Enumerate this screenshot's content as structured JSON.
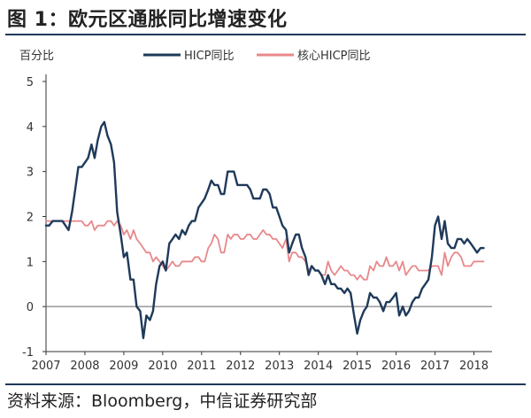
{
  "title": "图 1：欧元区通胀同比增速变化",
  "source": "资料来源：Bloomberg，中信证券研究部",
  "chart_data": {
    "type": "line",
    "ylabel": "百分比",
    "ylim": [
      -1,
      5
    ],
    "yticks": [
      "5",
      "4",
      "3",
      "2",
      "1",
      "0",
      "-1"
    ],
    "xlim": [
      2007,
      2018.33
    ],
    "xticks": [
      "2007",
      "2008",
      "2009",
      "2010",
      "2011",
      "2012",
      "2013",
      "2014",
      "2015",
      "2016",
      "2017",
      "2018"
    ],
    "grid": false,
    "legend_position": "top",
    "colors": {
      "headline": "#1f3a5a",
      "core": "#e8888a",
      "zero_line": "#666666",
      "axis": "#333333"
    },
    "series": [
      {
        "name": "HICP同比",
        "key": "headline",
        "x": [
          2007.0,
          2007.08,
          2007.17,
          2007.25,
          2007.33,
          2007.42,
          2007.5,
          2007.58,
          2007.67,
          2007.75,
          2007.83,
          2007.92,
          2008.0,
          2008.08,
          2008.17,
          2008.25,
          2008.33,
          2008.42,
          2008.5,
          2008.58,
          2008.67,
          2008.75,
          2008.83,
          2008.92,
          2009.0,
          2009.08,
          2009.17,
          2009.25,
          2009.33,
          2009.42,
          2009.5,
          2009.58,
          2009.67,
          2009.75,
          2009.83,
          2009.92,
          2010.0,
          2010.08,
          2010.17,
          2010.25,
          2010.33,
          2010.42,
          2010.5,
          2010.58,
          2010.67,
          2010.75,
          2010.83,
          2010.92,
          2011.0,
          2011.08,
          2011.17,
          2011.25,
          2011.33,
          2011.42,
          2011.5,
          2011.58,
          2011.67,
          2011.75,
          2011.83,
          2011.92,
          2012.0,
          2012.08,
          2012.17,
          2012.25,
          2012.33,
          2012.42,
          2012.5,
          2012.58,
          2012.67,
          2012.75,
          2012.83,
          2012.92,
          2013.0,
          2013.08,
          2013.17,
          2013.25,
          2013.33,
          2013.42,
          2013.5,
          2013.58,
          2013.67,
          2013.75,
          2013.83,
          2013.92,
          2014.0,
          2014.08,
          2014.17,
          2014.25,
          2014.33,
          2014.42,
          2014.5,
          2014.58,
          2014.67,
          2014.75,
          2014.83,
          2014.92,
          2015.0,
          2015.08,
          2015.17,
          2015.25,
          2015.33,
          2015.42,
          2015.5,
          2015.58,
          2015.67,
          2015.75,
          2015.83,
          2015.92,
          2016.0,
          2016.08,
          2016.17,
          2016.25,
          2016.33,
          2016.42,
          2016.5,
          2016.58,
          2016.67,
          2016.75,
          2016.83,
          2016.92,
          2017.0,
          2017.08,
          2017.17,
          2017.25,
          2017.33,
          2017.42,
          2017.5,
          2017.58,
          2017.67,
          2017.75,
          2017.83,
          2017.92,
          2018.0,
          2018.08,
          2018.17,
          2018.25
        ],
        "values": [
          1.8,
          1.8,
          1.9,
          1.9,
          1.9,
          1.9,
          1.8,
          1.7,
          2.1,
          2.6,
          3.1,
          3.1,
          3.2,
          3.3,
          3.6,
          3.3,
          3.7,
          4.0,
          4.1,
          3.8,
          3.6,
          3.2,
          2.1,
          1.6,
          1.1,
          1.2,
          0.6,
          0.6,
          0.0,
          -0.1,
          -0.7,
          -0.2,
          -0.3,
          -0.1,
          0.5,
          0.9,
          1.0,
          0.8,
          1.4,
          1.5,
          1.6,
          1.5,
          1.7,
          1.6,
          1.8,
          1.9,
          1.9,
          2.2,
          2.3,
          2.4,
          2.6,
          2.8,
          2.7,
          2.7,
          2.5,
          2.5,
          3.0,
          3.0,
          3.0,
          2.7,
          2.7,
          2.7,
          2.7,
          2.6,
          2.4,
          2.4,
          2.4,
          2.6,
          2.6,
          2.5,
          2.2,
          2.2,
          2.0,
          1.8,
          1.7,
          1.2,
          1.4,
          1.6,
          1.6,
          1.3,
          1.1,
          0.7,
          0.9,
          0.8,
          0.8,
          0.7,
          0.5,
          0.7,
          0.5,
          0.5,
          0.4,
          0.4,
          0.3,
          0.4,
          0.3,
          -0.2,
          -0.6,
          -0.3,
          -0.1,
          0.0,
          0.3,
          0.2,
          0.2,
          0.1,
          -0.1,
          0.1,
          0.1,
          0.2,
          0.3,
          -0.2,
          0.0,
          -0.2,
          -0.1,
          0.1,
          0.2,
          0.2,
          0.4,
          0.5,
          0.6,
          1.1,
          1.8,
          2.0,
          1.5,
          1.9,
          1.4,
          1.3,
          1.3,
          1.5,
          1.5,
          1.4,
          1.5,
          1.4,
          1.3,
          1.2,
          1.3,
          1.3
        ]
      },
      {
        "name": "核心HICP同比",
        "key": "core",
        "x": [
          2007.0,
          2007.08,
          2007.17,
          2007.25,
          2007.33,
          2007.42,
          2007.5,
          2007.58,
          2007.67,
          2007.75,
          2007.83,
          2007.92,
          2008.0,
          2008.08,
          2008.17,
          2008.25,
          2008.33,
          2008.42,
          2008.5,
          2008.58,
          2008.67,
          2008.75,
          2008.83,
          2008.92,
          2009.0,
          2009.08,
          2009.17,
          2009.25,
          2009.33,
          2009.42,
          2009.5,
          2009.58,
          2009.67,
          2009.75,
          2009.83,
          2009.92,
          2010.0,
          2010.08,
          2010.17,
          2010.25,
          2010.33,
          2010.42,
          2010.5,
          2010.58,
          2010.67,
          2010.75,
          2010.83,
          2010.92,
          2011.0,
          2011.08,
          2011.17,
          2011.25,
          2011.33,
          2011.42,
          2011.5,
          2011.58,
          2011.67,
          2011.75,
          2011.83,
          2011.92,
          2012.0,
          2012.08,
          2012.17,
          2012.25,
          2012.33,
          2012.42,
          2012.5,
          2012.58,
          2012.67,
          2012.75,
          2012.83,
          2012.92,
          2013.0,
          2013.08,
          2013.17,
          2013.25,
          2013.33,
          2013.42,
          2013.5,
          2013.58,
          2013.67,
          2013.75,
          2013.83,
          2013.92,
          2014.0,
          2014.08,
          2014.17,
          2014.25,
          2014.33,
          2014.42,
          2014.5,
          2014.58,
          2014.67,
          2014.75,
          2014.83,
          2014.92,
          2015.0,
          2015.08,
          2015.17,
          2015.25,
          2015.33,
          2015.42,
          2015.5,
          2015.58,
          2015.67,
          2015.75,
          2015.83,
          2015.92,
          2016.0,
          2016.08,
          2016.17,
          2016.25,
          2016.33,
          2016.42,
          2016.5,
          2016.58,
          2016.67,
          2016.75,
          2016.83,
          2016.92,
          2017.0,
          2017.08,
          2017.17,
          2017.25,
          2017.33,
          2017.42,
          2017.5,
          2017.58,
          2017.67,
          2017.75,
          2017.83,
          2017.92,
          2018.0,
          2018.08,
          2018.17,
          2018.25
        ],
        "values": [
          1.9,
          1.9,
          1.9,
          1.9,
          1.9,
          1.9,
          1.9,
          1.9,
          1.9,
          1.9,
          1.9,
          1.9,
          1.8,
          1.8,
          1.9,
          1.7,
          1.8,
          1.8,
          1.8,
          1.9,
          1.9,
          1.8,
          1.9,
          1.8,
          1.6,
          1.7,
          1.5,
          1.7,
          1.5,
          1.4,
          1.3,
          1.2,
          1.2,
          1.0,
          1.1,
          1.0,
          0.9,
          0.8,
          0.9,
          1.0,
          0.9,
          0.9,
          1.0,
          1.0,
          1.0,
          1.0,
          1.1,
          1.1,
          1.0,
          1.0,
          1.3,
          1.4,
          1.6,
          1.5,
          1.2,
          1.2,
          1.6,
          1.5,
          1.6,
          1.6,
          1.5,
          1.5,
          1.6,
          1.6,
          1.5,
          1.5,
          1.6,
          1.7,
          1.6,
          1.6,
          1.5,
          1.5,
          1.4,
          1.3,
          1.5,
          1.0,
          1.2,
          1.2,
          1.1,
          1.1,
          1.0,
          0.8,
          0.9,
          0.8,
          0.8,
          0.7,
          0.7,
          1.0,
          0.8,
          0.7,
          0.8,
          0.9,
          0.8,
          0.8,
          0.7,
          0.7,
          0.6,
          0.7,
          0.6,
          0.6,
          0.9,
          0.8,
          1.0,
          0.9,
          0.9,
          1.1,
          0.9,
          0.9,
          1.0,
          0.8,
          1.0,
          0.7,
          0.8,
          0.9,
          0.9,
          0.8,
          0.8,
          0.8,
          0.8,
          0.9,
          0.9,
          0.9,
          0.7,
          1.2,
          0.9,
          1.1,
          1.2,
          1.2,
          1.1,
          0.9,
          0.9,
          0.9,
          1.0,
          1.0,
          1.0,
          1.0
        ]
      }
    ]
  }
}
